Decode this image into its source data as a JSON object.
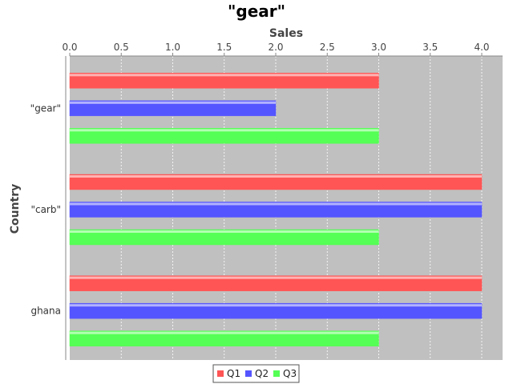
{
  "chart_data": {
    "type": "bar",
    "orientation": "horizontal",
    "title": "\"gear\"",
    "xlabel": "Sales",
    "ylabel": "Country",
    "categories": [
      "\"gear\"",
      "\"carb\"",
      "ghana"
    ],
    "series": [
      {
        "name": "Q1",
        "values": [
          3.0,
          4.0,
          4.0
        ],
        "color": "#ff5555"
      },
      {
        "name": "Q2",
        "values": [
          2.0,
          4.0,
          4.0
        ],
        "color": "#5555ff"
      },
      {
        "name": "Q3",
        "values": [
          3.0,
          3.0,
          3.0
        ],
        "color": "#55ff55"
      }
    ],
    "xlim": [
      0,
      4.2
    ],
    "ticks": [
      "0.0",
      "0.5",
      "1.0",
      "1.5",
      "2.0",
      "2.5",
      "3.0",
      "3.5",
      "4.0"
    ],
    "axis_position": "top",
    "grid": true,
    "plot_background": "#c0c0c0",
    "legend_position": "bottom"
  }
}
